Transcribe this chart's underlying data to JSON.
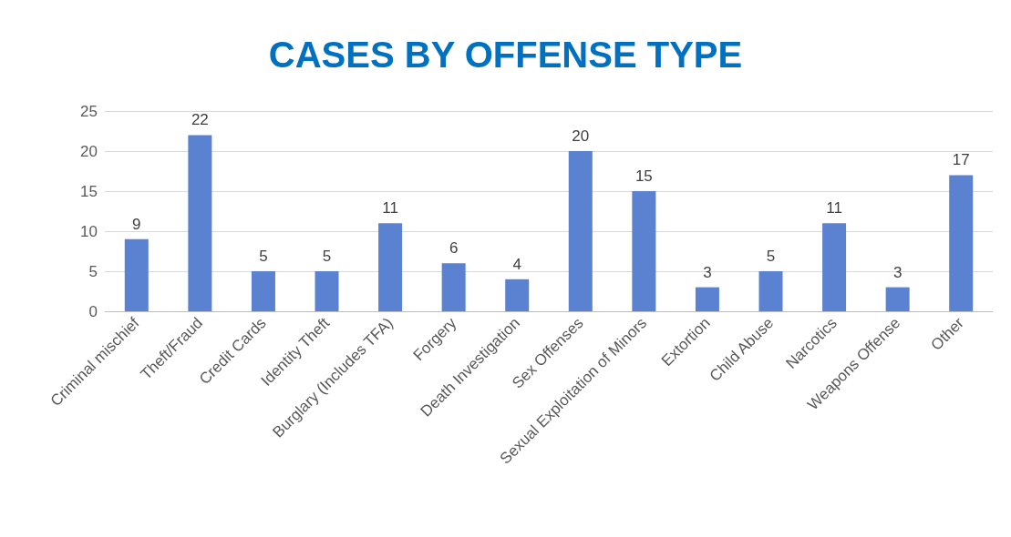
{
  "chart_data": {
    "type": "bar",
    "title": "CASES BY OFFENSE TYPE",
    "categories": [
      "Criminal mischief",
      "Theft/Fraud",
      "Credit Cards",
      "Identity Theft",
      "Burglary (Includes TFA)",
      "Forgery",
      "Death Investigation",
      "Sex Offenses",
      "Sexual Exploitation of Minors",
      "Extortion",
      "Child Abuse",
      "Narcotics",
      "Weapons Offense",
      "Other"
    ],
    "values": [
      9,
      22,
      5,
      5,
      11,
      6,
      4,
      20,
      15,
      3,
      5,
      11,
      3,
      17
    ],
    "color": "#5b82d0",
    "ylim": [
      0,
      25
    ],
    "yticks": [
      0,
      5,
      10,
      15,
      20,
      25
    ],
    "grid": "y",
    "data_labels": true
  }
}
